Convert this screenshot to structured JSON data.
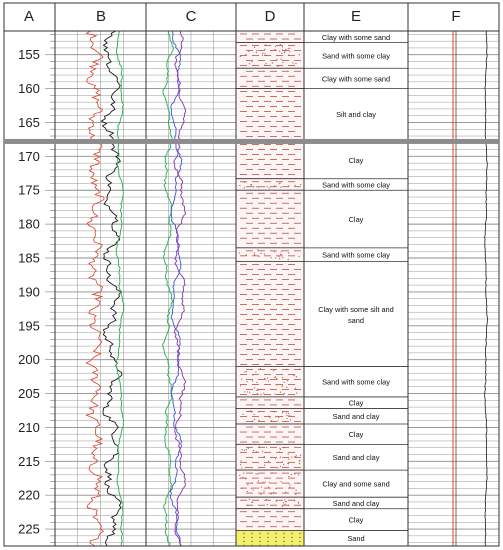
{
  "columns": [
    {
      "id": "A",
      "label": "A"
    },
    {
      "id": "B",
      "label": "B"
    },
    {
      "id": "C",
      "label": "C"
    },
    {
      "id": "D",
      "label": "D"
    },
    {
      "id": "E",
      "label": "E"
    },
    {
      "id": "F",
      "label": "F"
    }
  ],
  "depth_axis": {
    "ticks": [
      "155",
      "160",
      "165",
      "170",
      "175",
      "180",
      "185",
      "190",
      "195",
      "200",
      "205",
      "210",
      "215",
      "220",
      "225"
    ],
    "range": [
      151.5,
      227.5
    ],
    "break_at": 167.8
  },
  "lithology": [
    {
      "top": 151.5,
      "bottom": 153.2,
      "type": "clay",
      "label": "Clay  with some sand"
    },
    {
      "top": 153.2,
      "bottom": 157.0,
      "type": "sandy",
      "label": "Sand  with some clay"
    },
    {
      "top": 157.0,
      "bottom": 160.0,
      "type": "clay",
      "label": "Clay  with some sand"
    },
    {
      "top": 160.0,
      "bottom": 167.5,
      "type": "clay",
      "label": "Silt and clay"
    },
    {
      "top": 167.8,
      "bottom": 173.3,
      "type": "clay",
      "label": "Clay"
    },
    {
      "top": 173.3,
      "bottom": 175.0,
      "type": "sandy",
      "label": "Sand  with some clay"
    },
    {
      "top": 175.0,
      "bottom": 183.5,
      "type": "clay",
      "label": "Clay"
    },
    {
      "top": 183.5,
      "bottom": 185.5,
      "type": "sandy",
      "label": "Sand  with some clay"
    },
    {
      "top": 185.5,
      "bottom": 201.0,
      "type": "clay",
      "label": "Clay  with some silt and sand"
    },
    {
      "top": 201.0,
      "bottom": 205.5,
      "type": "sandy",
      "label": "Sand  with some clay"
    },
    {
      "top": 205.5,
      "bottom": 207.2,
      "type": "clay",
      "label": "Clay"
    },
    {
      "top": 207.2,
      "bottom": 209.5,
      "type": "sandy",
      "label": "Sand  and clay"
    },
    {
      "top": 209.5,
      "bottom": 212.5,
      "type": "clay",
      "label": "Clay"
    },
    {
      "top": 212.5,
      "bottom": 216.3,
      "type": "sandy",
      "label": "Sand  and clay"
    },
    {
      "top": 216.3,
      "bottom": 220.3,
      "type": "sandy",
      "label": "Clay and some sand"
    },
    {
      "top": 220.3,
      "bottom": 222.0,
      "type": "sandy",
      "label": "Sand  and clay"
    },
    {
      "top": 222.0,
      "bottom": 225.2,
      "type": "clay",
      "label": "Clay"
    },
    {
      "top": 225.2,
      "bottom": 227.5,
      "type": "sand",
      "label": "Sand"
    }
  ],
  "colors": {
    "grid": "#8c8c8c",
    "clay_fill": "#fdf5f5",
    "clay_line": "#b5543f",
    "sand_fill": "#f5f06a",
    "log_black": "#1a1a1a",
    "log_red": "#d9402b",
    "log_green": "#22b04b",
    "log_blue": "#3b56d6",
    "log_purple": "#8a2fa8",
    "break_bar": "#8c8c8c"
  }
}
